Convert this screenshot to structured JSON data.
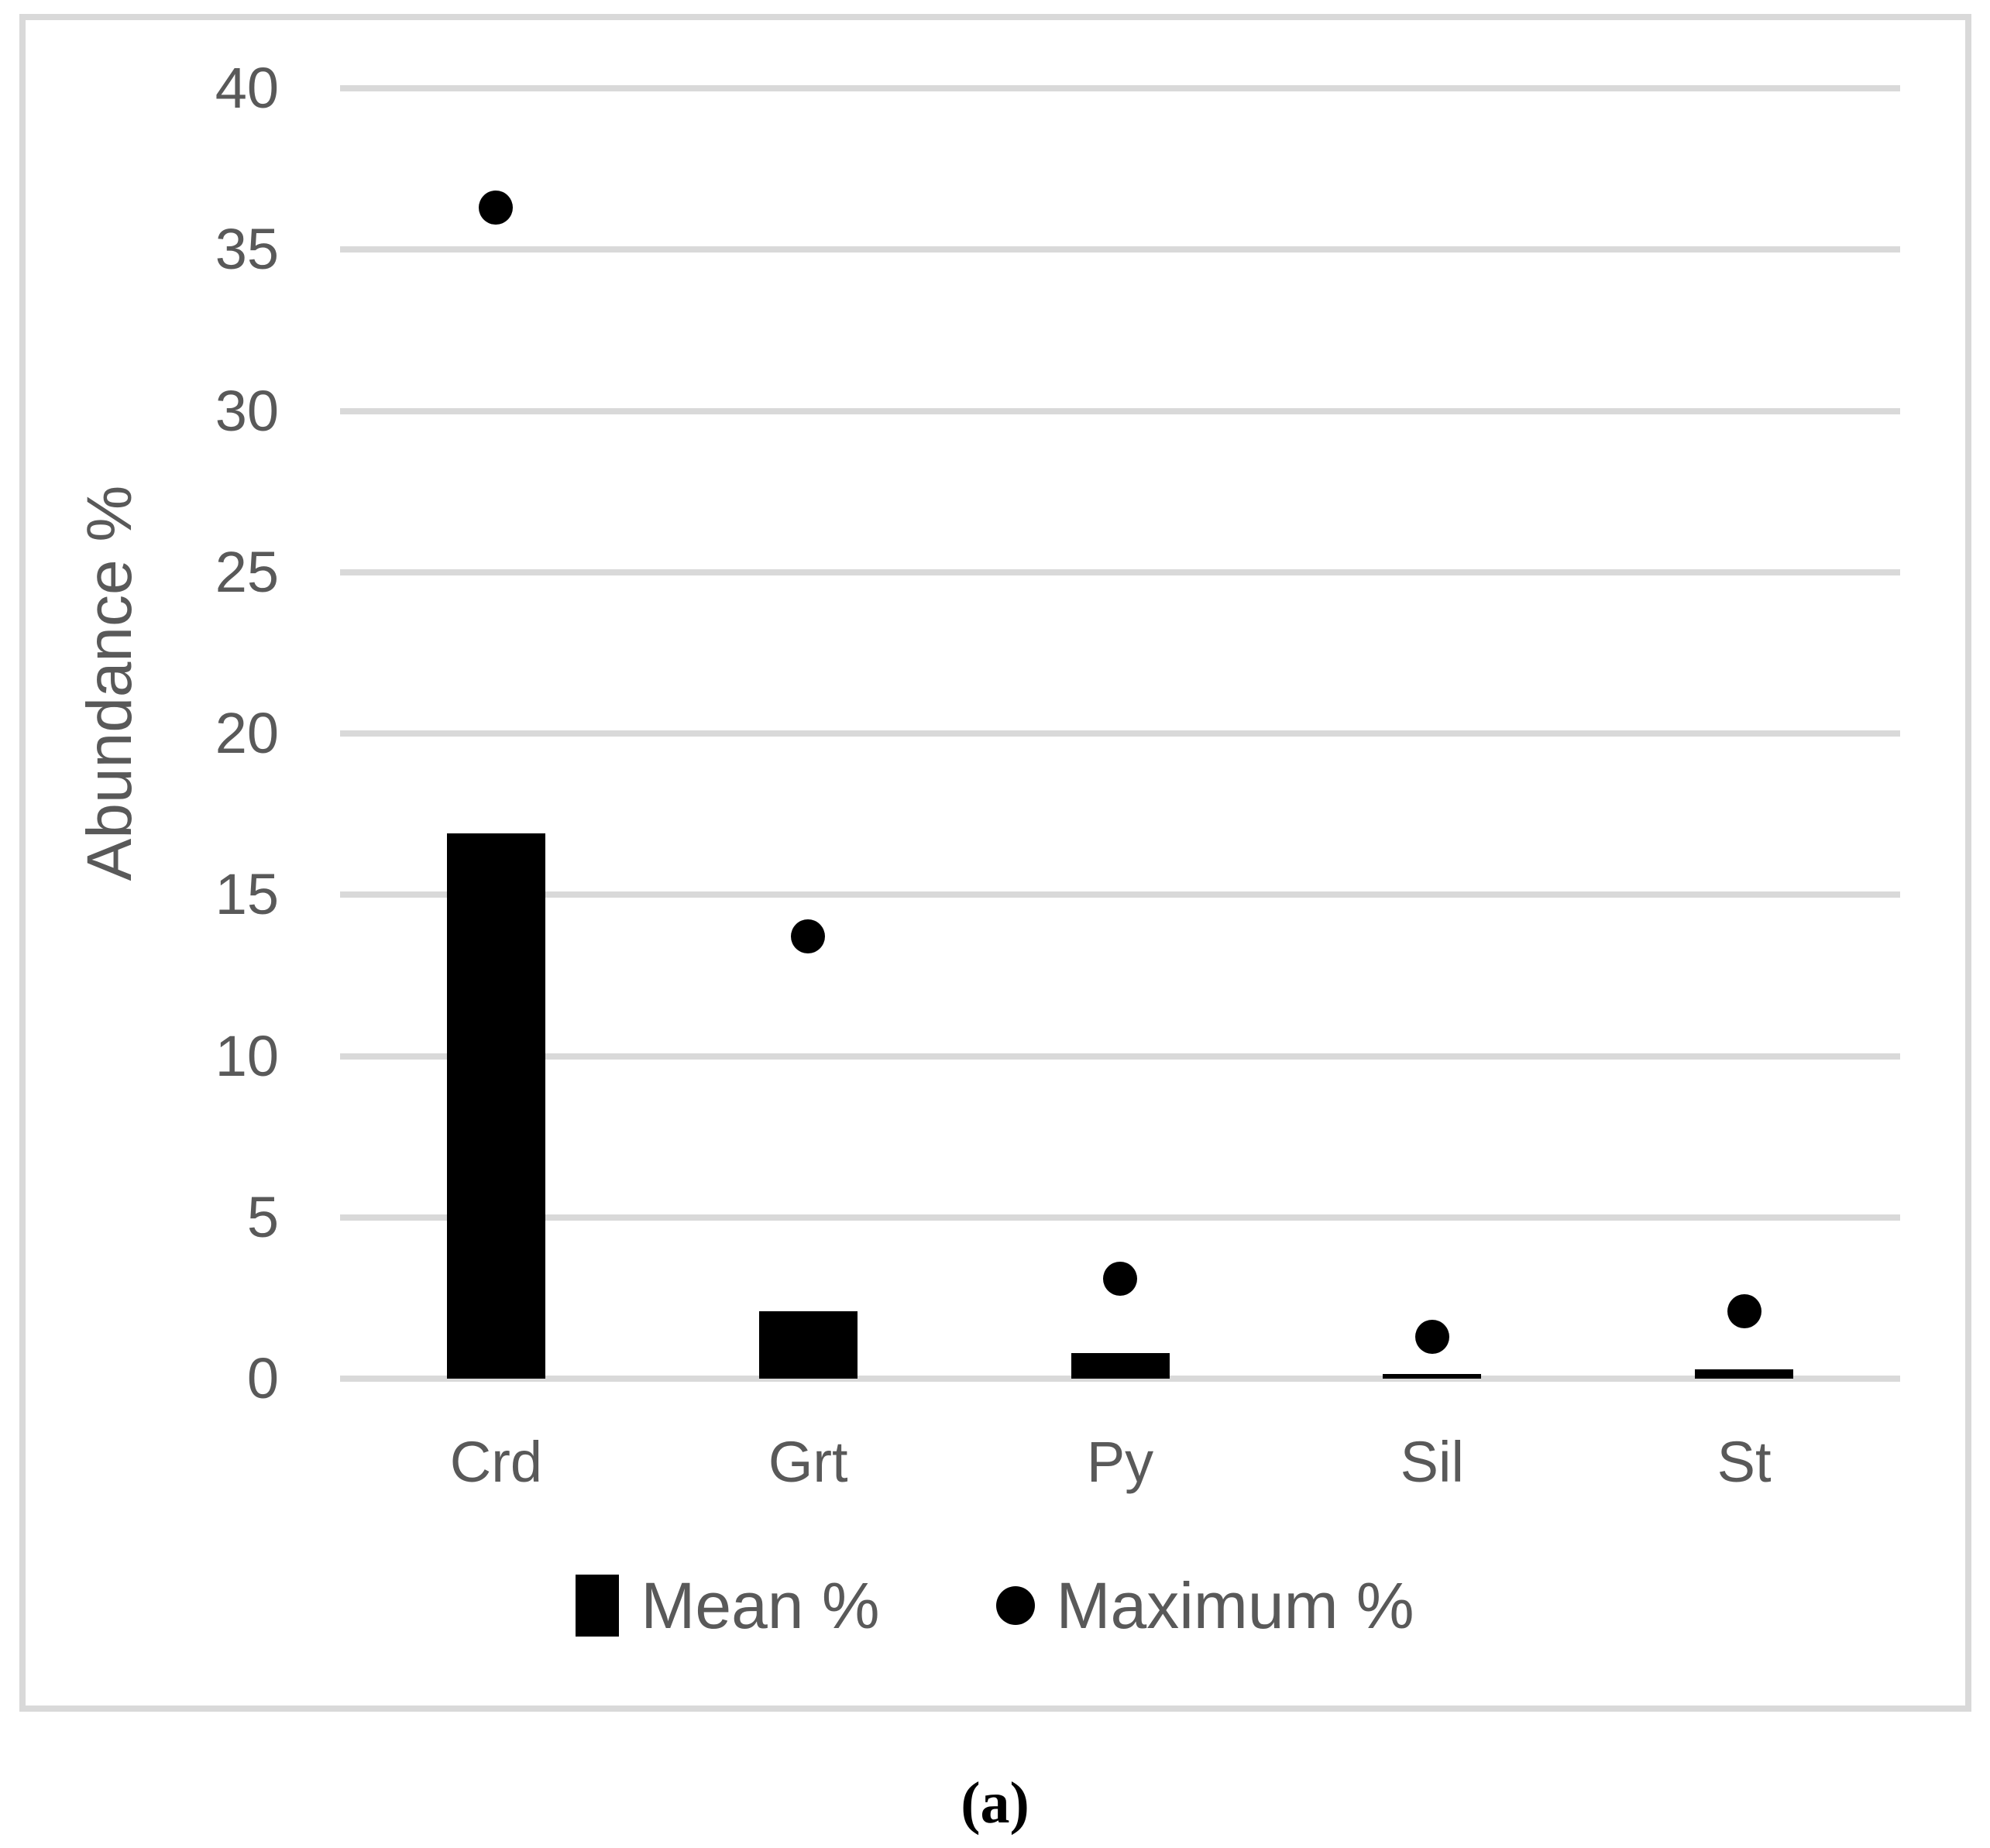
{
  "figure": {
    "caption": "(a)"
  },
  "chart_data": {
    "type": "bar",
    "subtype": "bar-with-scatter-overlay",
    "title": "",
    "categories": [
      "Crd",
      "Grt",
      "Py",
      "Sil",
      "St"
    ],
    "series": [
      {
        "name": "Mean %",
        "type": "bar",
        "marker": "square",
        "values": [
          16.9,
          2.1,
          0.8,
          0.15,
          0.3
        ]
      },
      {
        "name": "Maximum %",
        "type": "scatter",
        "marker": "circle",
        "values": [
          36.3,
          13.7,
          3.1,
          1.3,
          2.1
        ]
      }
    ],
    "xlabel": "",
    "ylabel": "Abundance %",
    "ylim": [
      0,
      40
    ],
    "yticks": [
      0,
      5,
      10,
      15,
      20,
      25,
      30,
      35,
      40
    ],
    "grid": "horizontal",
    "legend_position": "bottom",
    "colors": {
      "series_fill": "#000000",
      "axis_text": "#595959",
      "gridline": "#D9D9D9",
      "frame_border": "#D9D9D9",
      "background": "#FFFFFF",
      "caption_text": "#000000"
    }
  }
}
